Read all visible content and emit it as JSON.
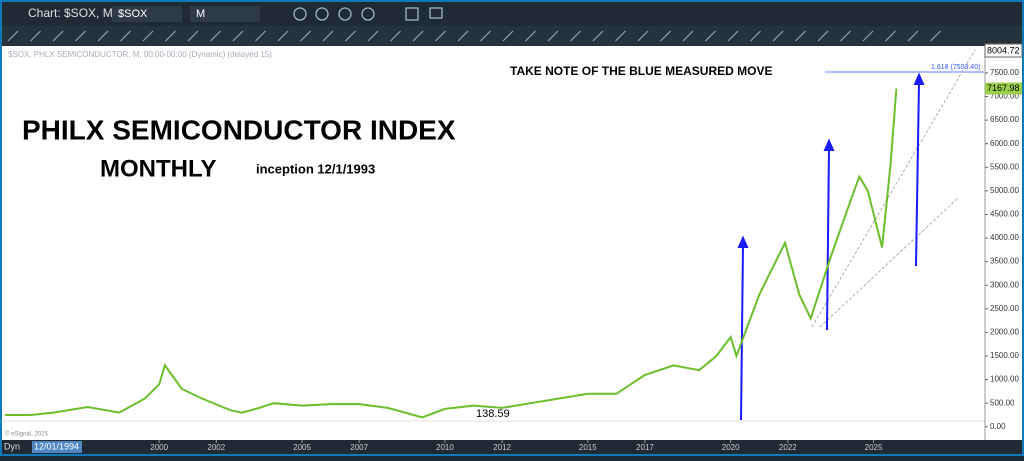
{
  "window_title": "Chart: $SOX, M",
  "toolbar": {
    "symbol": "$SOX",
    "interval": "M"
  },
  "chart_data": {
    "type": "line",
    "header": "$SOX, PHLX SEMICONDUCTOR, M, 00:00-00:00 (Dynamic) (delayed 15)",
    "title": "PHILX SEMICONDUCTOR INDEX",
    "subtitle": "MONTHLY",
    "note": "inception 12/1/1993",
    "annotation": "TAKE NOTE OF THE BLUE MEASURED MOVE",
    "fib_label": "1.618 (7503.40)",
    "low_label": 138.59,
    "top_label": 8004.72,
    "copyright": "© eSignal, 2025",
    "mode": "Dyn",
    "cursor_date": "12/01/1994",
    "color": "#6cbf2c",
    "x": [
      1994.6,
      1995.5,
      1996.3,
      1997.5,
      1998.6,
      1999.5,
      2000.0,
      2000.2,
      2000.8,
      2001.5,
      2002.5,
      2002.9,
      2003.5,
      2004.0,
      2005.0,
      2006.0,
      2007.0,
      2008.0,
      2008.9,
      2009.2,
      2010.0,
      2011.0,
      2012.0,
      2013.0,
      2014.0,
      2015.0,
      2016.0,
      2017.0,
      2018.0,
      2018.9,
      2019.5,
      2020.0,
      2020.2,
      2021.0,
      2021.9,
      2022.4,
      2022.8,
      2023.5,
      2024.2,
      2024.5,
      2024.8,
      2025.3,
      2025.6,
      2025.8
    ],
    "values": [
      250,
      250,
      300,
      420,
      300,
      600,
      900,
      1300,
      800,
      600,
      350,
      300,
      400,
      500,
      450,
      480,
      480,
      400,
      250,
      200,
      380,
      450,
      400,
      500,
      600,
      700,
      700,
      1100,
      1300,
      1200,
      1500,
      1900,
      1500,
      2800,
      3900,
      2800,
      2300,
      3600,
      4800,
      5300,
      5000,
      3800,
      5600,
      7167.98
    ],
    "xlim": [
      1994.5,
      2028.9
    ],
    "ylim": [
      -280,
      8070
    ],
    "xticks": [
      2000,
      2002,
      2005,
      2007,
      2010,
      2012,
      2015,
      2017,
      2020,
      2022,
      2025
    ],
    "yticks": [
      {
        "value": 0,
        "label": "0.00"
      },
      {
        "value": 500,
        "label": "500.00"
      },
      {
        "value": 1000,
        "label": "1000.00"
      },
      {
        "value": 1500,
        "label": "1500.00"
      },
      {
        "value": 2000,
        "label": "2000.00"
      },
      {
        "value": 2500,
        "label": "2500.00"
      },
      {
        "value": 3000,
        "label": "3000.00"
      },
      {
        "value": 3500,
        "label": "3500.00"
      },
      {
        "value": 4000,
        "label": "4000.00"
      },
      {
        "value": 4500,
        "label": "4500.00"
      },
      {
        "value": 5000,
        "label": "5000.00"
      },
      {
        "value": 5500,
        "label": "5500.00"
      },
      {
        "value": 6000,
        "label": "6000.00"
      },
      {
        "value": 6500,
        "label": "6500.00"
      },
      {
        "value": 7000,
        "label": "7000.00"
      },
      {
        "value": 7500,
        "label": "7500.00"
      }
    ]
  }
}
